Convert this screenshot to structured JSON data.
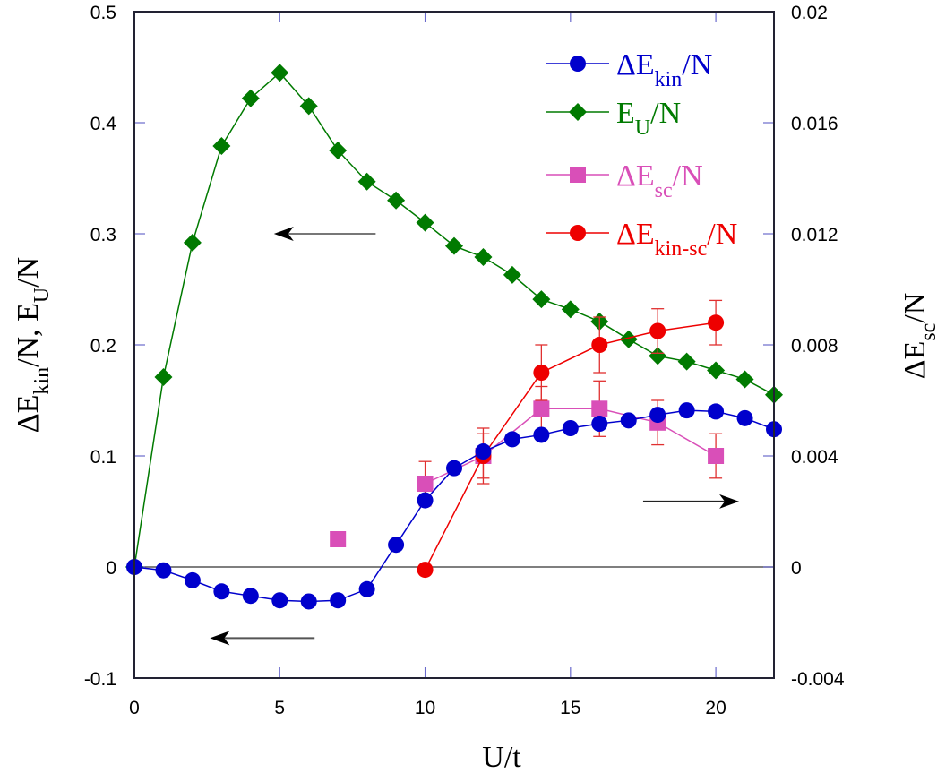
{
  "chart_data": {
    "type": "line",
    "title": "",
    "xlabel": "U/t",
    "ylabel_left": {
      "base": "ΔE",
      "sub1": "kin",
      "mid": "/N,  E",
      "sub2": "U",
      "tail": "/N"
    },
    "ylabel_right": {
      "base": "ΔE",
      "sub": "sc",
      "tail": "/N"
    },
    "xlim": [
      0,
      22
    ],
    "ylim_left": [
      -0.1,
      0.5
    ],
    "ylim_right": [
      -0.004,
      0.02
    ],
    "x_ticks": [
      0,
      5,
      10,
      15,
      20
    ],
    "x_tick_labels": [
      "0",
      "5",
      "10",
      "15",
      "20"
    ],
    "y_left_ticks": [
      -0.1,
      0,
      0.1,
      0.2,
      0.3,
      0.4,
      0.5
    ],
    "y_left_tick_labels": [
      "-0.1",
      "0",
      "0.1",
      "0.2",
      "0.3",
      "0.4",
      "0.5"
    ],
    "y_right_ticks": [
      -0.004,
      0,
      0.004,
      0.008,
      0.012,
      0.016,
      0.02
    ],
    "y_right_tick_labels": [
      "-0.004",
      "0",
      "0.004",
      "0.008",
      "0.012",
      "0.016",
      "0.02"
    ],
    "zero_line": true,
    "grid": false,
    "legend_position": "top-right",
    "series": [
      {
        "name": "ΔE_kin/N",
        "legend": {
          "base": "ΔE",
          "sub": "kin",
          "tail": "/N"
        },
        "axis": "left",
        "color": "#0000cc",
        "marker": "circle",
        "connected": true,
        "x": [
          0,
          1,
          2,
          3,
          4,
          5,
          6,
          7,
          8,
          9,
          10,
          11,
          12,
          13,
          14,
          15,
          16,
          17,
          18,
          19,
          20,
          21,
          22
        ],
        "y": [
          0,
          -0.003,
          -0.012,
          -0.022,
          -0.026,
          -0.03,
          -0.031,
          -0.03,
          -0.02,
          0.02,
          0.06,
          0.089,
          0.104,
          0.115,
          0.119,
          0.125,
          0.129,
          0.132,
          0.137,
          0.141,
          0.14,
          0.134,
          0.124
        ]
      },
      {
        "name": "E_U/N",
        "legend": {
          "base": "E",
          "sub": "U",
          "tail": "/N"
        },
        "axis": "left",
        "color": "#007a00",
        "marker": "diamond",
        "connected": true,
        "x": [
          0,
          1,
          2,
          3,
          4,
          5,
          6,
          7,
          8,
          9,
          10,
          11,
          12,
          13,
          14,
          15,
          16,
          17,
          18,
          19,
          20,
          21,
          22
        ],
        "y": [
          0,
          0.171,
          0.292,
          0.379,
          0.422,
          0.445,
          0.415,
          0.375,
          0.347,
          0.33,
          0.31,
          0.289,
          0.279,
          0.263,
          0.241,
          0.232,
          0.221,
          0.205,
          0.19,
          0.185,
          0.177,
          0.169,
          0.155
        ]
      },
      {
        "name": "ΔE_sc/N",
        "legend": {
          "base": "ΔE",
          "sub": "sc",
          "tail": "/N"
        },
        "axis": "right",
        "color": "#d94fb8",
        "marker": "square",
        "connected_from_index": 1,
        "x": [
          7,
          10,
          12,
          14,
          16,
          18,
          20
        ],
        "y": [
          0.001,
          0.003,
          0.004,
          0.0057,
          0.0057,
          0.0052,
          0.004
        ],
        "yerr": [
          0,
          0.0008,
          0.0008,
          0.0008,
          0.001,
          0.0008,
          0.0008
        ]
      },
      {
        "name": "ΔE_kin-sc/N",
        "legend": {
          "base": "ΔE",
          "sub": "kin-sc",
          "tail": "/N"
        },
        "axis": "right",
        "color": "#ee0000",
        "marker": "circle",
        "connected": true,
        "x": [
          10,
          12,
          14,
          16,
          18,
          20
        ],
        "y": [
          -0.0001,
          0.004,
          0.007,
          0.008,
          0.0085,
          0.0088
        ],
        "yerr": [
          0,
          0.001,
          0.001,
          0.001,
          0.0008,
          0.0008
        ]
      }
    ],
    "annotations": [
      {
        "type": "arrow",
        "direction": "left",
        "axis": "left",
        "x_from": 8.3,
        "x_to": 4.8,
        "y": 0.3,
        "color": "#777777"
      },
      {
        "type": "arrow",
        "direction": "left",
        "axis": "left",
        "x_from": 6.2,
        "x_to": 2.6,
        "y": -0.064,
        "color": "#555555"
      },
      {
        "type": "arrow",
        "direction": "right",
        "axis": "left",
        "x_from": 17.5,
        "x_to": 20.8,
        "y": 0.059,
        "color": "#222222"
      }
    ]
  }
}
